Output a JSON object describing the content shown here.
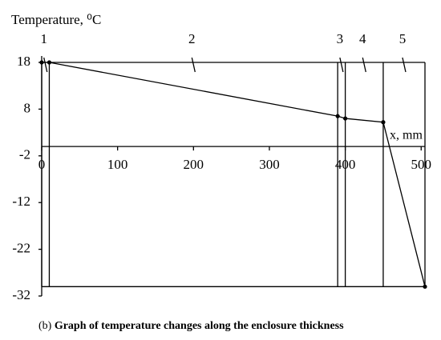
{
  "chart_data": {
    "type": "line",
    "y_label": "Temperature, ⁰C",
    "x_label": "x, mm",
    "caption_label": "(b)",
    "caption": "Graph of temperature changes along the enclosure thickness",
    "x": [
      0,
      10,
      390,
      400,
      450,
      505
    ],
    "series": [
      {
        "color": "#000000",
        "values": [
          18,
          18,
          6.5,
          6,
          5.2,
          -30
        ]
      }
    ],
    "layer_boundaries": [
      0,
      10,
      390,
      400,
      450,
      505
    ],
    "layer_labels": [
      "1",
      "2",
      "3",
      "4",
      "5"
    ],
    "xlim": [
      0,
      505
    ],
    "xticks": [
      0,
      100,
      200,
      300,
      400,
      500
    ],
    "ylim": [
      -32,
      18
    ],
    "yticks": [
      18,
      8,
      -2,
      -12,
      -22,
      -32
    ]
  }
}
